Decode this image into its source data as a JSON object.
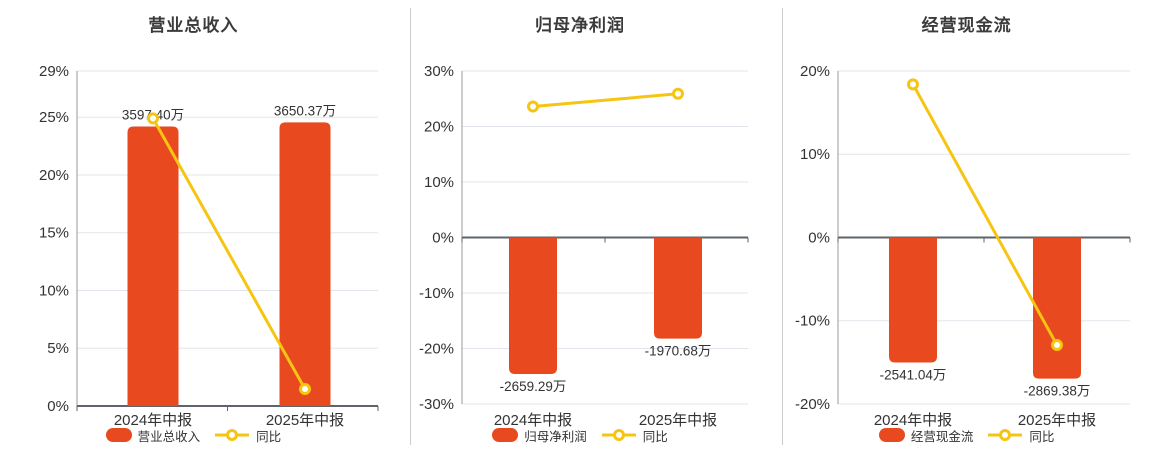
{
  "colors": {
    "bar": "#E8491E",
    "line": "#F5C511",
    "grid": "#E2E6EC",
    "zero_axis": "#5E6469",
    "axis_line": "#999999",
    "divider": "#CBCBCB",
    "text": "#333333",
    "title": "#3B3B3B"
  },
  "chart_data": [
    {
      "type": "bar+line",
      "title": "营业总收入",
      "categories": [
        "2024年中报",
        "2025年中报"
      ],
      "bar_series": {
        "name": "营业总收入",
        "unit": "万",
        "values": [
          3597.4,
          3650.37
        ],
        "data_labels": [
          "3597.40万",
          "3650.37万"
        ]
      },
      "line_series": {
        "name": "同比",
        "values_pct": [
          24.9,
          1.47
        ]
      },
      "y_axis": {
        "unit": "%",
        "min_pct": 0,
        "max_pct": 29,
        "ticks_pct": [
          29,
          25,
          20,
          15,
          10,
          5,
          0
        ]
      },
      "legend_position": "bottom",
      "grid": true,
      "bar_max_extent_pct": 24.55
    },
    {
      "type": "bar+line",
      "title": "归母净利润",
      "categories": [
        "2024年中报",
        "2025年中报"
      ],
      "bar_series": {
        "name": "归母净利润",
        "unit": "万",
        "values": [
          -2659.29,
          -1970.68
        ],
        "data_labels": [
          "-2659.29万",
          "-1970.68万"
        ]
      },
      "line_series": {
        "name": "同比",
        "values_pct": [
          23.6,
          25.9
        ]
      },
      "y_axis": {
        "unit": "%",
        "min_pct": -30,
        "max_pct": 30,
        "ticks_pct": [
          30,
          20,
          10,
          0,
          -10,
          -20,
          -30
        ]
      },
      "legend_position": "bottom",
      "grid": true,
      "bar_max_extent_pct": 24.6
    },
    {
      "type": "bar+line",
      "title": "经营现金流",
      "categories": [
        "2024年中报",
        "2025年中报"
      ],
      "bar_series": {
        "name": "经营现金流",
        "unit": "万",
        "values": [
          -2541.04,
          -2869.38
        ],
        "data_labels": [
          "-2541.04万",
          "-2869.38万"
        ]
      },
      "line_series": {
        "name": "同比",
        "values_pct": [
          18.4,
          -12.92
        ]
      },
      "y_axis": {
        "unit": "%",
        "min_pct": -20,
        "max_pct": 20,
        "ticks_pct": [
          20,
          10,
          0,
          -10,
          -20
        ]
      },
      "legend_position": "bottom",
      "grid": true,
      "bar_max_extent_pct": 16.95
    }
  ]
}
